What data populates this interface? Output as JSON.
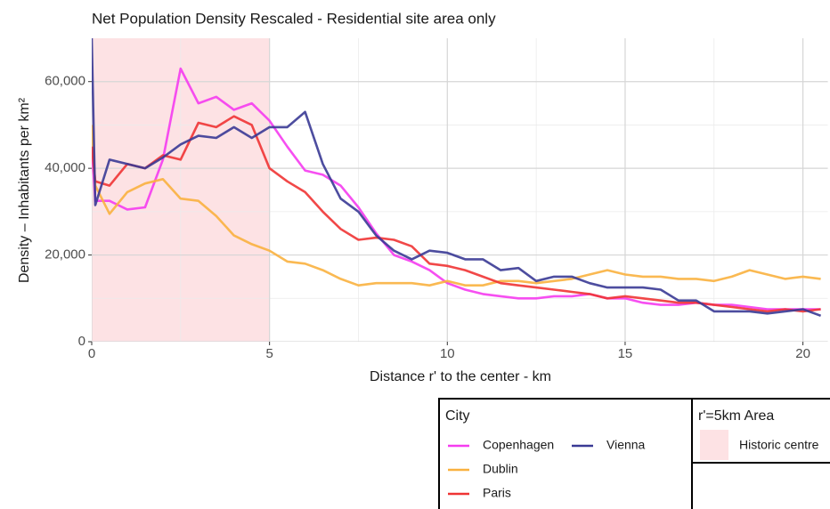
{
  "chart_data": {
    "type": "line",
    "title": "Net Population Density Rescaled - Residential site area only",
    "x_label": "Distance r' to the center - km",
    "y_label": "Density – Inhabitants per km²",
    "legend_title": "City",
    "grid": true,
    "xlim": [
      0,
      20.7
    ],
    "ylim": [
      0,
      70000
    ],
    "xticks": [
      0,
      5,
      10,
      15,
      20
    ],
    "x_minor_ticks": [
      2.5,
      7.5,
      12.5,
      17.5
    ],
    "yticks": [
      0,
      {
        "value": 20000,
        "label": "20,000"
      },
      {
        "value": 40000,
        "label": "40,000"
      },
      {
        "value": 60000,
        "label": "60,000"
      }
    ],
    "y_minor_ticks": [
      10000,
      30000,
      50000
    ],
    "highlight": {
      "xmin": 0,
      "xmax": 5,
      "color": "#fde2e4",
      "legend_title": "r'=5km Area",
      "name": "Historic centre"
    },
    "x": [
      0,
      0.1,
      0.5,
      1,
      1.5,
      2,
      2.5,
      3,
      3.5,
      4,
      4.5,
      5,
      5.5,
      6,
      6.5,
      7,
      7.5,
      8,
      8.5,
      9,
      9.5,
      10,
      10.5,
      11,
      11.5,
      12,
      12.5,
      13,
      13.5,
      14,
      14.5,
      15,
      15.5,
      16,
      16.5,
      17,
      17.5,
      18,
      18.5,
      19,
      19.5,
      20,
      20.5
    ],
    "series": [
      {
        "name": "Copenhagen",
        "color": "#f53cf0",
        "values": [
          45000,
          32500,
          32500,
          30500,
          31000,
          42000,
          63000,
          55000,
          56500,
          53500,
          55000,
          51000,
          45000,
          39500,
          38500,
          36000,
          31000,
          25000,
          20000,
          18500,
          16500,
          13500,
          12000,
          11000,
          10500,
          10000,
          10000,
          10500,
          10500,
          11000,
          10000,
          10000,
          9000,
          8500,
          8500,
          9000,
          8500,
          8500,
          8000,
          7500,
          7500,
          7500,
          7500
        ]
      },
      {
        "name": "Dublin",
        "color": "#f9b13f",
        "values": [
          50000,
          36000,
          29500,
          34500,
          36500,
          37500,
          33000,
          32500,
          29000,
          24500,
          22500,
          21000,
          18500,
          18000,
          16500,
          14500,
          13000,
          13500,
          13500,
          13500,
          13000,
          14000,
          13000,
          13000,
          14000,
          14000,
          13500,
          14000,
          14500,
          15500,
          16500,
          15500,
          15000,
          15000,
          14500,
          14500,
          14000,
          15000,
          16500,
          15500,
          14500,
          15000,
          14500
        ]
      },
      {
        "name": "Paris",
        "color": "#ef3434",
        "values": [
          45000,
          37000,
          36000,
          41000,
          40000,
          43000,
          42000,
          50500,
          49500,
          52000,
          50000,
          40000,
          37000,
          34500,
          30000,
          26000,
          23500,
          24000,
          23500,
          22000,
          18000,
          17500,
          16500,
          15000,
          13500,
          13000,
          12500,
          12000,
          11500,
          11000,
          10000,
          10500,
          10000,
          9500,
          9000,
          9000,
          8500,
          8000,
          7500,
          7000,
          7500,
          7000,
          7500
        ]
      },
      {
        "name": "Vienna",
        "color": "#3a3a95",
        "values": [
          70000,
          31500,
          42000,
          41000,
          40000,
          42500,
          45500,
          47500,
          47000,
          49500,
          47000,
          49500,
          49500,
          53000,
          41000,
          33000,
          30000,
          24500,
          21000,
          19000,
          21000,
          20500,
          19000,
          19000,
          16500,
          17000,
          14000,
          15000,
          15000,
          13500,
          12500,
          12500,
          12500,
          12000,
          9500,
          9500,
          7000,
          7000,
          7000,
          6500,
          7000,
          7500,
          6000
        ]
      }
    ]
  }
}
